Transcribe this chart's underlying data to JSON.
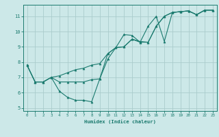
{
  "title": "",
  "xlabel": "Humidex (Indice chaleur)",
  "ylabel": "",
  "background_color": "#cce8e8",
  "grid_color": "#aacccc",
  "line_color": "#1a7a6e",
  "xlim": [
    -0.5,
    23.5
  ],
  "ylim": [
    4.8,
    11.75
  ],
  "xtick_vals": [
    0,
    1,
    2,
    3,
    4,
    5,
    6,
    7,
    8,
    9,
    10,
    11,
    12,
    13,
    14,
    15,
    16,
    17,
    18,
    19,
    20,
    21,
    22,
    23
  ],
  "ytick_vals": [
    5,
    6,
    7,
    8,
    9,
    10,
    11
  ],
  "series": [
    [
      7.8,
      6.7,
      6.7,
      7.0,
      6.1,
      5.7,
      5.5,
      5.5,
      5.4,
      6.9,
      8.2,
      8.95,
      9.8,
      9.75,
      9.3,
      10.35,
      11.0,
      9.35,
      11.25,
      11.3,
      11.35,
      11.1,
      11.4,
      11.4
    ],
    [
      7.8,
      6.7,
      6.7,
      7.0,
      6.7,
      6.7,
      6.7,
      6.7,
      6.85,
      6.9,
      8.55,
      8.95,
      9.0,
      9.5,
      9.3,
      9.3,
      10.35,
      11.0,
      11.25,
      11.3,
      11.35,
      11.1,
      11.4,
      11.4
    ],
    [
      7.8,
      6.7,
      6.7,
      7.0,
      7.1,
      7.3,
      7.5,
      7.6,
      7.8,
      7.9,
      8.55,
      8.95,
      9.0,
      9.5,
      9.35,
      9.3,
      10.35,
      11.0,
      11.25,
      11.3,
      11.35,
      11.1,
      11.4,
      11.4
    ]
  ]
}
